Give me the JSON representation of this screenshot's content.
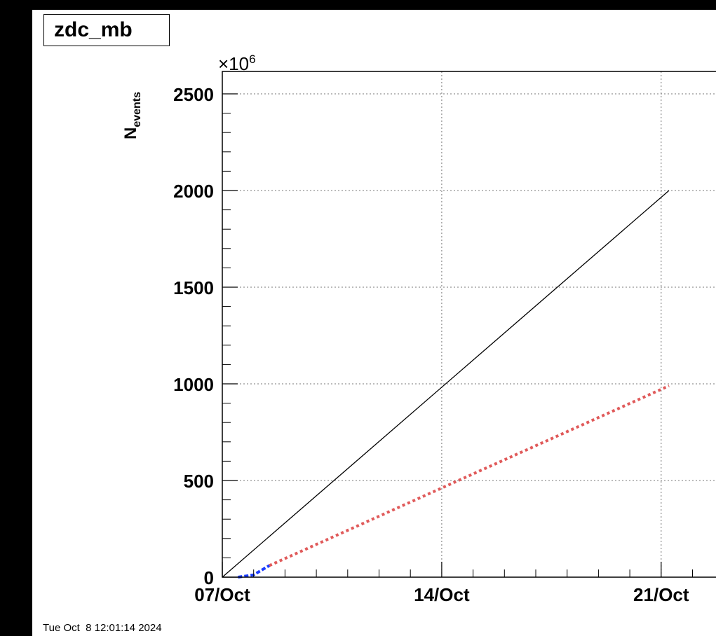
{
  "chart_data": {
    "type": "line",
    "title": "zdc_mb",
    "ylabel_main": "N",
    "ylabel_sub": "events",
    "y_multiplier_base": "×10",
    "y_multiplier_exp": "6",
    "xlabel": "",
    "x_range": [
      "2024-10-07",
      "2024-10-24"
    ],
    "ylim": [
      0,
      2500
    ],
    "y_ticks": [
      0,
      500,
      1000,
      1500,
      2000,
      2500
    ],
    "x_ticks": [
      {
        "date": "2024-10-07",
        "label": "07/Oct"
      },
      {
        "date": "2024-10-14",
        "label": "14/Oct"
      },
      {
        "date": "2024-10-21",
        "label": "21/Oct"
      }
    ],
    "grid": true,
    "series": [
      {
        "style": "solid",
        "color": "#000000",
        "x": [
          "2024-10-07",
          "2024-10-21 06:00"
        ],
        "y": [
          0,
          2000
        ]
      },
      {
        "style": "dotted",
        "color": "#e05a5a",
        "x": [
          "2024-10-08 12:00",
          "2024-10-21 06:00"
        ],
        "y": [
          60,
          990
        ]
      },
      {
        "style": "solid",
        "color": "#1a3cff",
        "x": [
          "2024-10-07 12:00",
          "2024-10-08 00:00",
          "2024-10-08 12:00"
        ],
        "y": [
          0,
          12,
          60
        ]
      }
    ]
  },
  "footer_timestamp": "Tue Oct  8 12:01:14 2024"
}
